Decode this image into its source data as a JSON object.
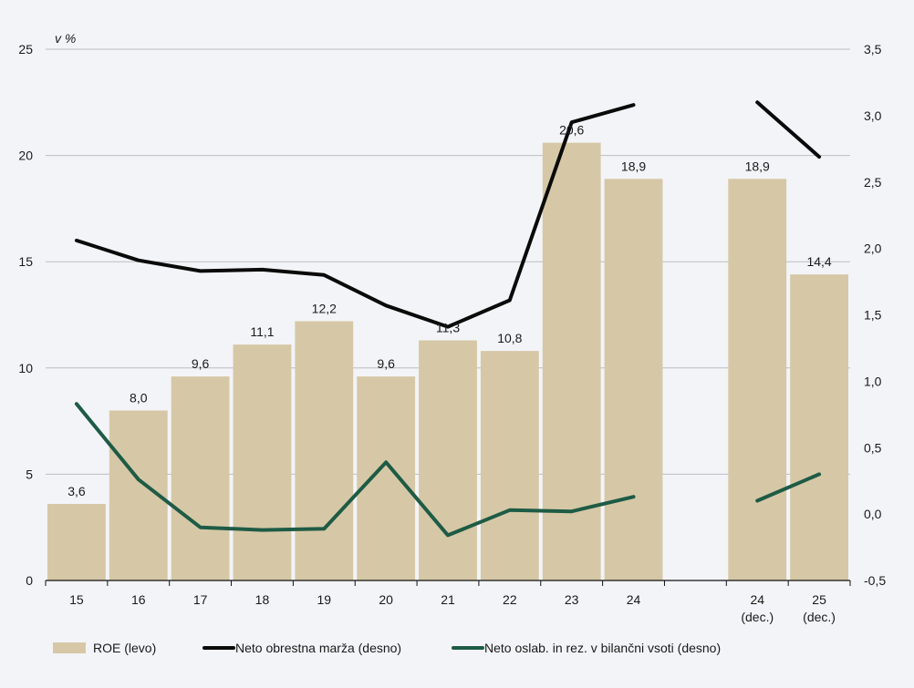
{
  "chart_data": {
    "type": "bar",
    "title": "",
    "unit_label": "v %",
    "categories": [
      {
        "label": "15",
        "sub": ""
      },
      {
        "label": "16",
        "sub": ""
      },
      {
        "label": "17",
        "sub": ""
      },
      {
        "label": "18",
        "sub": ""
      },
      {
        "label": "19",
        "sub": ""
      },
      {
        "label": "20",
        "sub": ""
      },
      {
        "label": "21",
        "sub": ""
      },
      {
        "label": "22",
        "sub": ""
      },
      {
        "label": "23",
        "sub": ""
      },
      {
        "label": "24",
        "sub": ""
      },
      {
        "label": "",
        "sub": ""
      },
      {
        "label": "24",
        "sub": "(dec.)"
      },
      {
        "label": "25",
        "sub": "(dec.)"
      }
    ],
    "left_axis": {
      "min": 0,
      "max": 25,
      "ticks": [
        "0",
        "5",
        "10",
        "15",
        "20",
        "25"
      ],
      "tick_values": [
        0,
        5,
        10,
        15,
        20,
        25
      ]
    },
    "right_axis": {
      "min": -0.5,
      "max": 3.5,
      "ticks": [
        "-0,5",
        "0,0",
        "0,5",
        "1,0",
        "1,5",
        "2,0",
        "2,5",
        "3,0",
        "3,5"
      ],
      "tick_values": [
        -0.5,
        0,
        0.5,
        1,
        1.5,
        2,
        2.5,
        3,
        3.5
      ]
    },
    "grid": true,
    "legend_position": "bottom",
    "series": [
      {
        "name": "ROE (levo)",
        "kind": "bar",
        "axis": "left",
        "color": "#d6c8a6",
        "values": [
          3.6,
          8.0,
          9.6,
          11.1,
          12.2,
          9.6,
          11.3,
          10.8,
          20.6,
          18.9,
          null,
          18.9,
          14.4
        ],
        "labels": [
          "3,6",
          "8,0",
          "9,6",
          "11,1",
          "12,2",
          "9,6",
          "11,3",
          "10,8",
          "20,6",
          "18,9",
          "",
          "18,9",
          "14,4"
        ]
      },
      {
        "name": "Neto obrestna marža (desno)",
        "kind": "line",
        "axis": "right",
        "color": "#0a0a0a",
        "values": [
          2.06,
          1.91,
          1.83,
          1.84,
          1.8,
          1.57,
          1.41,
          1.61,
          2.95,
          3.08,
          null,
          3.1,
          2.69
        ]
      },
      {
        "name": "Neto oslab. in rez. v bilančni vsoti (desno)",
        "kind": "line",
        "axis": "right",
        "color": "#1e5b45",
        "values": [
          0.83,
          0.26,
          -0.1,
          -0.12,
          -0.11,
          0.39,
          -0.16,
          0.03,
          0.02,
          0.13,
          null,
          0.1,
          0.3
        ]
      }
    ]
  }
}
